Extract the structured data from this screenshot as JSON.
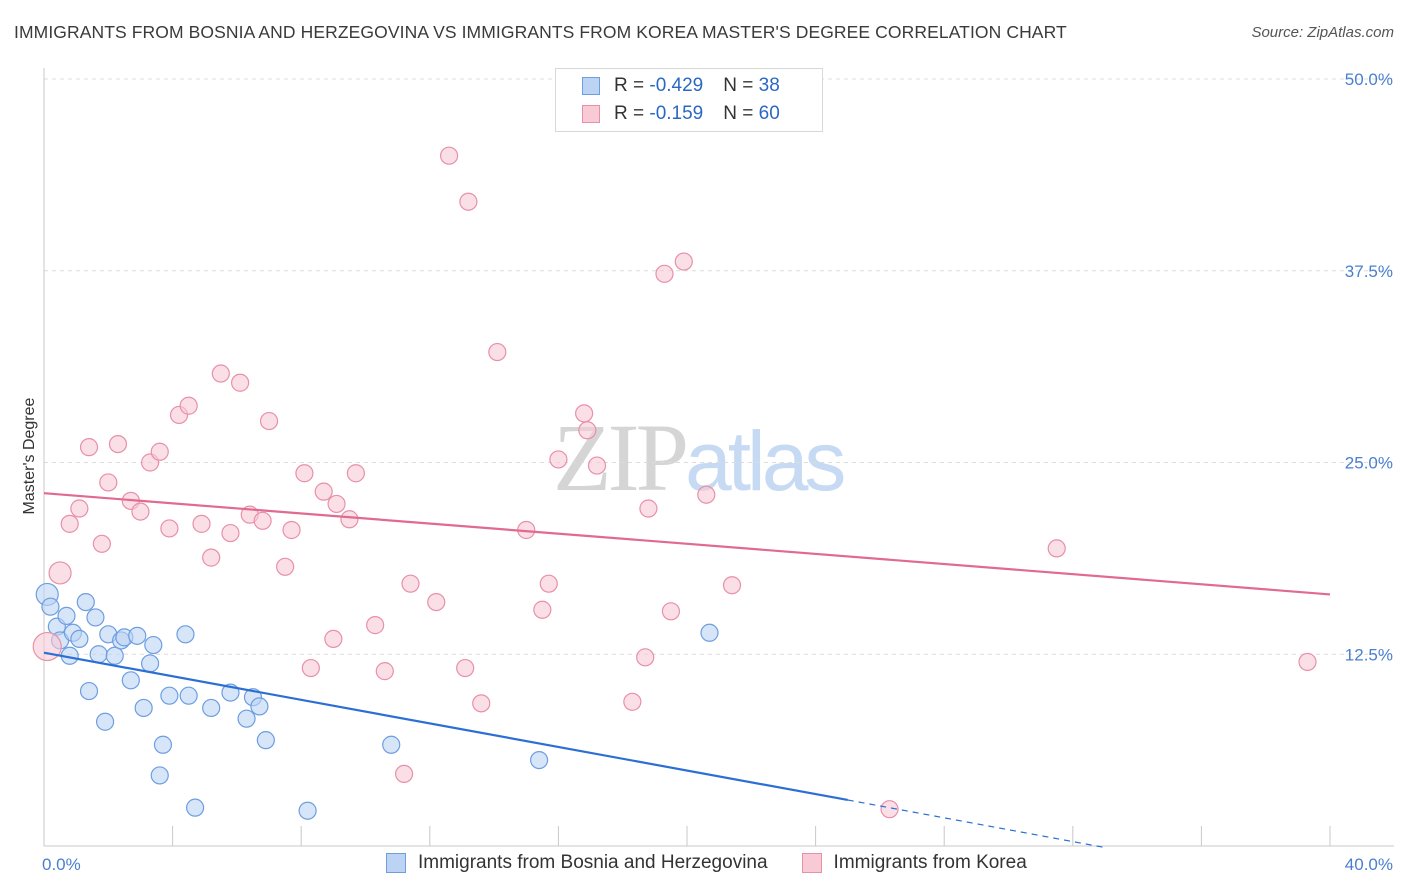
{
  "title": "IMMIGRANTS FROM BOSNIA AND HERZEGOVINA VS IMMIGRANTS FROM KOREA MASTER'S DEGREE CORRELATION CHART",
  "source": "Source: ZipAtlas.com",
  "watermark": {
    "zip": "ZIP",
    "atlas": "atlas"
  },
  "legend": {
    "rows": [
      {
        "r_label": "R = ",
        "r_value": "-0.429",
        "n_label": "N = ",
        "n_value": "38"
      },
      {
        "r_label": "R = ",
        "r_value": "-0.159",
        "n_label": "N = ",
        "n_value": "60"
      }
    ]
  },
  "chart_data": {
    "type": "scatter",
    "ylabel": "Master's Degree",
    "xlim": [
      0,
      40
    ],
    "ylim": [
      0,
      50
    ],
    "x_tick_labels": [
      {
        "value": 0,
        "label": "0.0%"
      },
      {
        "value": 40,
        "label": "40.0%"
      }
    ],
    "y_tick_labels": [
      {
        "value": 12.5,
        "label": "12.5%"
      },
      {
        "value": 25,
        "label": "25.0%"
      },
      {
        "value": 37.5,
        "label": "37.5%"
      },
      {
        "value": 50,
        "label": "50.0%"
      }
    ],
    "grid": true,
    "series": [
      {
        "name": "Immigrants from Bosnia and Herzegovina",
        "color": "#6d9ee0",
        "fill": "#bcd3f3",
        "line_color": "#2b6fd4",
        "trend": {
          "x0": 0,
          "y0": 12.6,
          "x1": 25,
          "y1": 3.0,
          "dash_to_x": 33,
          "dash_to_y": -0.1
        },
        "points": [
          [
            0.1,
            16.4
          ],
          [
            0.2,
            15.6
          ],
          [
            0.4,
            14.3
          ],
          [
            0.5,
            13.4
          ],
          [
            0.7,
            15.0
          ],
          [
            0.8,
            12.4
          ],
          [
            0.9,
            13.9
          ],
          [
            1.1,
            13.5
          ],
          [
            1.3,
            15.9
          ],
          [
            1.4,
            10.1
          ],
          [
            1.6,
            14.9
          ],
          [
            1.7,
            12.5
          ],
          [
            1.9,
            8.1
          ],
          [
            2.0,
            13.8
          ],
          [
            2.2,
            12.4
          ],
          [
            2.4,
            13.4
          ],
          [
            2.5,
            13.6
          ],
          [
            2.7,
            10.8
          ],
          [
            2.9,
            13.7
          ],
          [
            3.1,
            9.0
          ],
          [
            3.3,
            11.9
          ],
          [
            3.4,
            13.1
          ],
          [
            3.7,
            6.6
          ],
          [
            3.6,
            4.6
          ],
          [
            3.9,
            9.8
          ],
          [
            4.7,
            2.5
          ],
          [
            4.4,
            13.8
          ],
          [
            4.5,
            9.8
          ],
          [
            5.2,
            9.0
          ],
          [
            5.8,
            10.0
          ],
          [
            6.3,
            8.3
          ],
          [
            6.5,
            9.7
          ],
          [
            6.7,
            9.1
          ],
          [
            6.9,
            6.9
          ],
          [
            8.2,
            2.3
          ],
          [
            10.8,
            6.6
          ],
          [
            15.4,
            5.6
          ],
          [
            20.7,
            13.9
          ]
        ]
      },
      {
        "name": "Immigrants from Korea",
        "color": "#e890a8",
        "fill": "#f8cad6",
        "line_color": "#e06a90",
        "trend": {
          "x0": 0,
          "y0": 23.0,
          "x1": 40,
          "y1": 16.4
        },
        "points": [
          [
            0.1,
            13.0
          ],
          [
            0.5,
            17.8
          ],
          [
            0.8,
            21.0
          ],
          [
            1.1,
            22.0
          ],
          [
            1.4,
            26.0
          ],
          [
            1.8,
            19.7
          ],
          [
            2.0,
            23.7
          ],
          [
            2.3,
            26.2
          ],
          [
            2.7,
            22.5
          ],
          [
            3.0,
            21.8
          ],
          [
            3.3,
            25.0
          ],
          [
            3.6,
            25.7
          ],
          [
            3.9,
            20.7
          ],
          [
            4.2,
            28.1
          ],
          [
            4.5,
            28.7
          ],
          [
            4.9,
            21.0
          ],
          [
            5.2,
            18.8
          ],
          [
            5.5,
            30.8
          ],
          [
            5.8,
            20.4
          ],
          [
            6.1,
            30.2
          ],
          [
            6.4,
            21.6
          ],
          [
            6.8,
            21.2
          ],
          [
            7.0,
            27.7
          ],
          [
            7.5,
            18.2
          ],
          [
            7.7,
            20.6
          ],
          [
            8.1,
            24.3
          ],
          [
            8.3,
            11.6
          ],
          [
            8.7,
            23.1
          ],
          [
            9.1,
            22.3
          ],
          [
            9.5,
            21.3
          ],
          [
            9.0,
            13.5
          ],
          [
            9.7,
            24.3
          ],
          [
            10.3,
            14.4
          ],
          [
            10.6,
            11.4
          ],
          [
            11.2,
            4.7
          ],
          [
            11.4,
            17.1
          ],
          [
            12.2,
            15.9
          ],
          [
            12.6,
            45.0
          ],
          [
            13.2,
            42.0
          ],
          [
            13.1,
            11.6
          ],
          [
            13.6,
            9.3
          ],
          [
            14.1,
            32.2
          ],
          [
            15.0,
            20.6
          ],
          [
            15.5,
            15.4
          ],
          [
            15.7,
            17.1
          ],
          [
            16.0,
            25.2
          ],
          [
            16.8,
            28.2
          ],
          [
            16.9,
            27.1
          ],
          [
            17.2,
            24.8
          ],
          [
            18.3,
            9.4
          ],
          [
            18.7,
            12.3
          ],
          [
            18.8,
            22.0
          ],
          [
            19.3,
            37.3
          ],
          [
            19.5,
            15.3
          ],
          [
            19.9,
            38.1
          ],
          [
            20.6,
            22.9
          ],
          [
            21.4,
            17.0
          ],
          [
            26.3,
            2.4
          ],
          [
            31.5,
            19.4
          ],
          [
            39.3,
            12.0
          ]
        ]
      }
    ]
  }
}
